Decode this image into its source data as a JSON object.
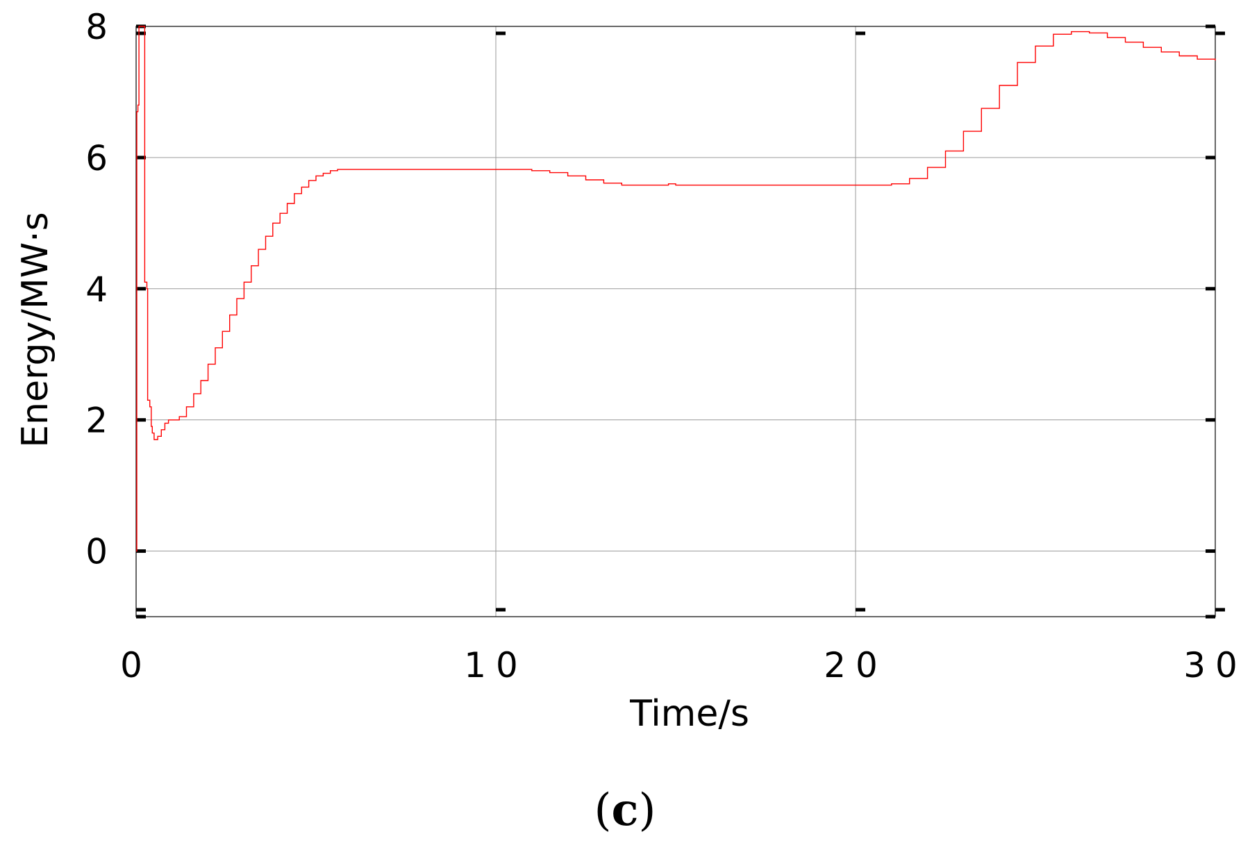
{
  "chart_data": {
    "type": "line",
    "xlabel": "Time/s",
    "ylabel": "Energy/MW·s",
    "panel_label_open": "(",
    "panel_label_letter": "c",
    "panel_label_close": ")",
    "xlim": [
      0,
      30
    ],
    "ylim": [
      -1,
      8
    ],
    "xticks": [
      0,
      10,
      20,
      30
    ],
    "xtick_labels": [
      "0",
      "10",
      "20",
      "30"
    ],
    "yticks": [
      0,
      2,
      4,
      6,
      8
    ],
    "ytick_labels": [
      "0",
      "2",
      "4",
      "6",
      "8"
    ],
    "grid": true,
    "legend": "none",
    "series": [
      {
        "color": "#ff0000",
        "x": [
          0.0,
          0.02,
          0.05,
          0.08,
          0.12,
          0.16,
          0.2,
          0.24,
          0.28,
          0.3,
          0.32,
          0.38,
          0.42,
          0.45,
          0.5,
          0.6,
          0.7,
          0.8,
          0.9,
          1.0,
          1.2,
          1.4,
          1.6,
          1.8,
          2.0,
          2.2,
          2.4,
          2.6,
          2.8,
          3.0,
          3.2,
          3.4,
          3.6,
          3.8,
          4.0,
          4.2,
          4.4,
          4.6,
          4.8,
          5.0,
          5.2,
          5.4,
          5.6,
          5.8,
          6.0,
          7.0,
          8.0,
          9.0,
          10.0,
          10.5,
          11.0,
          11.5,
          12.0,
          12.5,
          13.0,
          13.5,
          14.0,
          14.5,
          14.8,
          15.0,
          16.0,
          17.0,
          18.0,
          19.0,
          20.0,
          20.5,
          21.0,
          21.5,
          22.0,
          22.5,
          23.0,
          23.5,
          24.0,
          24.5,
          25.0,
          25.5,
          26.0,
          26.5,
          27.0,
          27.5,
          28.0,
          28.5,
          29.0,
          29.5,
          30.0
        ],
        "y": [
          0.0,
          6.7,
          6.8,
          8.0,
          8.0,
          8.0,
          8.0,
          4.1,
          4.1,
          4.0,
          2.3,
          2.2,
          1.9,
          1.8,
          1.7,
          1.75,
          1.85,
          1.95,
          2.0,
          2.0,
          2.05,
          2.2,
          2.4,
          2.6,
          2.85,
          3.1,
          3.35,
          3.6,
          3.85,
          4.1,
          4.35,
          4.6,
          4.8,
          5.0,
          5.15,
          5.3,
          5.45,
          5.55,
          5.65,
          5.72,
          5.76,
          5.8,
          5.82,
          5.82,
          5.82,
          5.82,
          5.82,
          5.82,
          5.82,
          5.82,
          5.8,
          5.77,
          5.72,
          5.66,
          5.61,
          5.58,
          5.58,
          5.58,
          5.6,
          5.58,
          5.58,
          5.58,
          5.58,
          5.58,
          5.58,
          5.58,
          5.6,
          5.68,
          5.85,
          6.1,
          6.4,
          6.75,
          7.1,
          7.45,
          7.7,
          7.88,
          7.92,
          7.9,
          7.83,
          7.76,
          7.68,
          7.61,
          7.55,
          7.5,
          7.48
        ]
      }
    ]
  }
}
